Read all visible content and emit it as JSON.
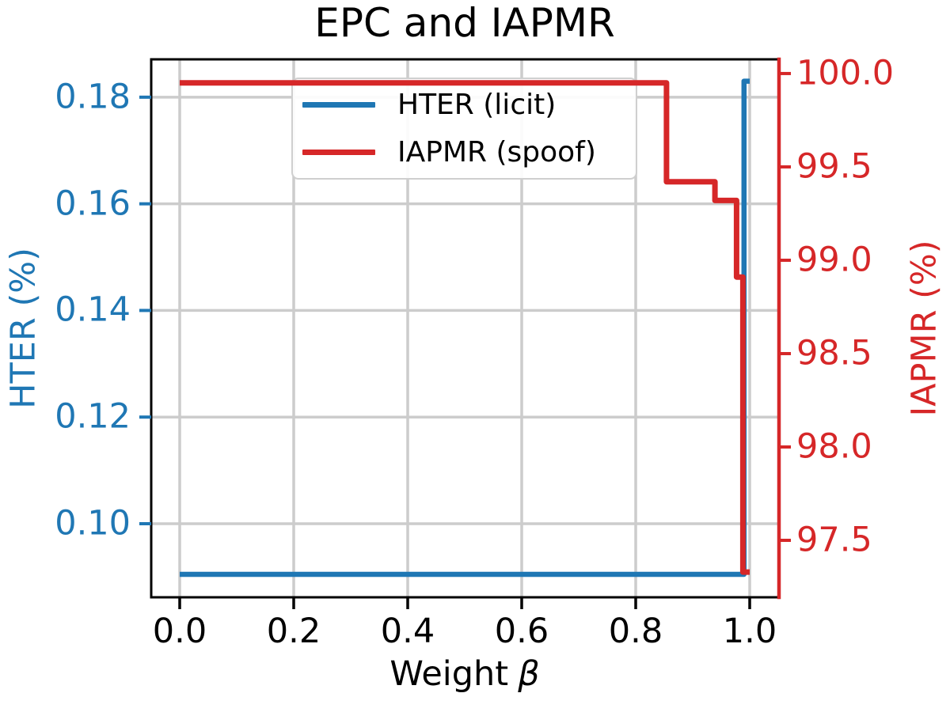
{
  "title": "EPC and IAPMR",
  "legend": {
    "items": [
      {
        "label": "HTER (licit)",
        "color": "#1f77b4"
      },
      {
        "label": "IAPMR (spoof)",
        "color": "#d62728"
      }
    ]
  },
  "axes": {
    "x": {
      "label_text": "Weight",
      "label_symbol": "β",
      "color": "#000000",
      "range": [
        -0.05,
        1.05
      ],
      "ticks": [
        0.0,
        0.2,
        0.4,
        0.6,
        0.8,
        1.0
      ],
      "tick_labels": [
        "0.0",
        "0.2",
        "0.4",
        "0.6",
        "0.8",
        "1.0"
      ]
    },
    "y_left": {
      "label": "HTER (%)",
      "color": "#1f77b4",
      "range": [
        0.0862,
        0.1871
      ],
      "ticks": [
        0.1,
        0.12,
        0.14,
        0.16,
        0.18
      ],
      "tick_labels": [
        "0.10",
        "0.12",
        "0.14",
        "0.16",
        "0.18"
      ]
    },
    "y_right": {
      "label": "IAPMR (%)",
      "color": "#d62728",
      "range": [
        97.195,
        100.076
      ],
      "ticks": [
        97.5,
        98.0,
        98.5,
        99.0,
        99.5,
        100.0
      ],
      "tick_labels": [
        "97.5",
        "98.0",
        "98.5",
        "99.0",
        "99.5",
        "100.0"
      ]
    }
  },
  "style": {
    "grid_color": "#cccccc",
    "spine_color": "#000000",
    "right_spine_color": "#d62728",
    "left_tick_color": "#1f77b4",
    "right_tick_color": "#d62728",
    "background": "#ffffff"
  },
  "chart_data": {
    "type": "line",
    "title": "EPC and IAPMR",
    "xlabel": "Weight β",
    "ylabel_left": "HTER (%)",
    "ylabel_right": "IAPMR (%)",
    "xlim": [
      -0.05,
      1.05
    ],
    "ylim_left": [
      0.0862,
      0.1871
    ],
    "ylim_right": [
      97.195,
      100.076
    ],
    "grid": true,
    "legend_position": "upper-left-inside",
    "series": [
      {
        "name": "HTER (licit)",
        "axis": "left",
        "color": "#1f77b4",
        "linewidth": 6.5,
        "points": [
          [
            0.0,
            0.0905
          ],
          [
            0.99,
            0.0905
          ],
          [
            0.99,
            0.183
          ],
          [
            1.0,
            0.183
          ]
        ]
      },
      {
        "name": "IAPMR (spoof)",
        "axis": "right",
        "color": "#d62728",
        "linewidth": 7,
        "points": [
          [
            0.0,
            99.95
          ],
          [
            0.854,
            99.95
          ],
          [
            0.854,
            99.42
          ],
          [
            0.939,
            99.42
          ],
          [
            0.939,
            99.32
          ],
          [
            0.977,
            99.32
          ],
          [
            0.977,
            98.91
          ],
          [
            0.988,
            98.91
          ],
          [
            0.988,
            97.33
          ],
          [
            1.0,
            97.33
          ]
        ]
      }
    ]
  }
}
